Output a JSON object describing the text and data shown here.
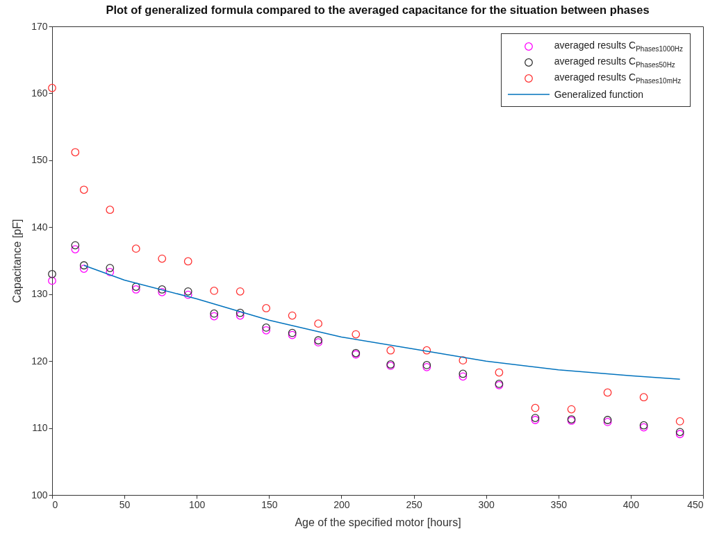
{
  "chart_data": {
    "type": "scatter",
    "title": "Plot of generalized formula compared to the averaged capacitance for the situation between phases",
    "xlabel": "Age of the specified motor [hours]",
    "ylabel": "Capacitance [pF]",
    "x": [
      0,
      16,
      22,
      40,
      58,
      76,
      94,
      112,
      130,
      148,
      166,
      184,
      210,
      234,
      259,
      284,
      309,
      334,
      359,
      384,
      409,
      434
    ],
    "series": [
      {
        "name": "averaged results C$_{Phases1000Hz}$",
        "color": "#ff00ff",
        "values": [
          132.0,
          136.7,
          133.8,
          133.3,
          130.7,
          130.3,
          129.9,
          126.7,
          126.8,
          124.6,
          123.9,
          122.8,
          121.0,
          119.3,
          119.1,
          117.7,
          116.4,
          111.2,
          111.1,
          110.9,
          110.1,
          109.1
        ]
      },
      {
        "name": "averaged results C$_{Phases50Hz}$",
        "color": "#333333",
        "values": [
          133.0,
          137.3,
          134.3,
          133.9,
          131.1,
          130.7,
          130.4,
          127.1,
          127.2,
          125.0,
          124.2,
          123.1,
          121.2,
          119.5,
          119.4,
          118.1,
          116.6,
          111.5,
          111.3,
          111.2,
          110.4,
          109.4
        ]
      },
      {
        "name": "averaged results C$_{Phases10mHz}$",
        "color": "#ff3333",
        "values": [
          160.8,
          151.2,
          145.6,
          142.6,
          136.8,
          135.3,
          134.9,
          130.5,
          130.4,
          127.9,
          126.8,
          125.6,
          124.0,
          121.6,
          121.6,
          120.1,
          118.3,
          113.0,
          112.8,
          115.3,
          114.6,
          111.0
        ]
      },
      {
        "name": "Generalized function",
        "type": "line",
        "color": "#0072bd",
        "marker": "none",
        "x": [
          22,
          50,
          100,
          150,
          200,
          250,
          300,
          350,
          400,
          434
        ],
        "values": [
          134.3,
          132.1,
          129.3,
          126.1,
          123.6,
          121.8,
          120.0,
          118.7,
          117.8,
          117.3
        ]
      }
    ],
    "marker": "circle",
    "xlim": [
      0,
      450
    ],
    "xticks": [
      0,
      50,
      100,
      150,
      200,
      250,
      300,
      350,
      400,
      450
    ],
    "ylim": [
      100,
      170
    ],
    "yticks": [
      100,
      110,
      120,
      130,
      140,
      150,
      160,
      170
    ],
    "grid": false,
    "legend": "top right"
  }
}
